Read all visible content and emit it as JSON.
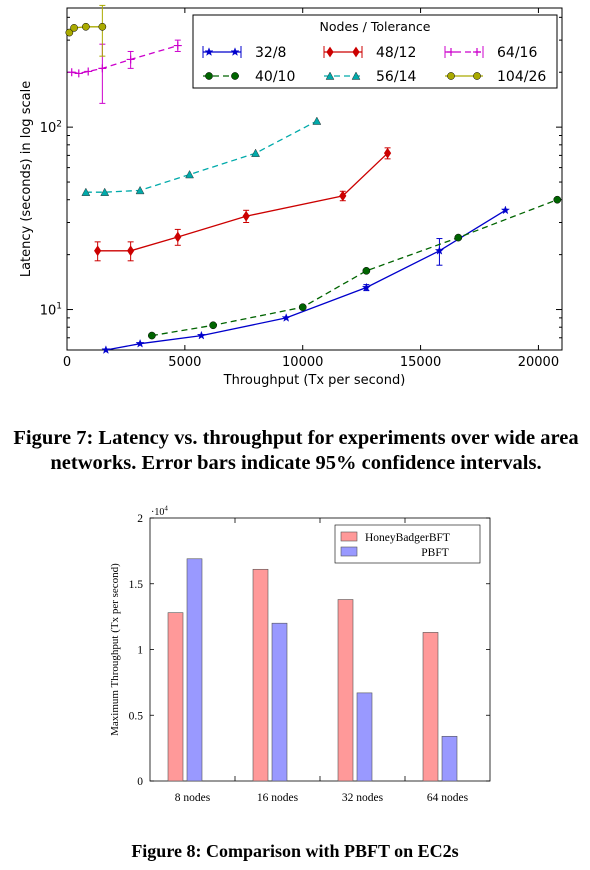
{
  "figure7": {
    "caption": "Figure 7: Latency vs. throughput for experiments over wide area networks. Error bars indicate 95% confidence intervals."
  },
  "figure8": {
    "caption": "Figure 8: Comparison with PBFT on EC2s"
  },
  "chart_data": [
    {
      "id": "fig7",
      "type": "line",
      "title": "",
      "xlabel": "Throughput (Tx per second)",
      "ylabel": "Latency (seconds) in log scale",
      "xlim": [
        0,
        21000
      ],
      "ylim": [
        6,
        450
      ],
      "yscale": "log",
      "xticks": [
        0,
        5000,
        10000,
        15000,
        20000
      ],
      "yticks": [
        {
          "value": 10,
          "label": "10^1"
        },
        {
          "value": 100,
          "label": "10^2"
        }
      ],
      "grid": false,
      "legend": {
        "title": "Nodes / Tolerance",
        "placement": "top-right",
        "columns": 3
      },
      "series": [
        {
          "name": "32/8",
          "color": "#0000cc",
          "dash": "solid",
          "marker": "star",
          "points": [
            [
              1650,
              6.0
            ],
            [
              3100,
              6.5
            ],
            [
              5700,
              7.2
            ],
            [
              9300,
              9.0
            ],
            [
              12700,
              13.2
            ],
            [
              15800,
              21.0
            ],
            [
              18600,
              35.0
            ]
          ],
          "err": [
            0,
            0,
            0,
            0,
            0.5,
            3.5,
            0
          ]
        },
        {
          "name": "40/10",
          "color": "#006400",
          "dash": "dashed",
          "marker": "circle",
          "points": [
            [
              3600,
              7.2
            ],
            [
              6200,
              8.2
            ],
            [
              10000,
              10.3
            ],
            [
              12700,
              16.3
            ],
            [
              16600,
              24.8
            ],
            [
              20800,
              40.0
            ]
          ],
          "err": [
            0,
            0,
            0,
            0,
            0,
            0
          ]
        },
        {
          "name": "48/12",
          "color": "#cc0000",
          "dash": "solid",
          "marker": "diamond",
          "points": [
            [
              1300,
              21.0
            ],
            [
              2700,
              21.0
            ],
            [
              4700,
              25.0
            ],
            [
              7600,
              32.5
            ],
            [
              11700,
              42.0
            ],
            [
              13600,
              72.0
            ]
          ],
          "err": [
            2.5,
            2.5,
            2.5,
            2.5,
            2.5,
            5
          ]
        },
        {
          "name": "56/14",
          "color": "#00aaaa",
          "dash": "dashed",
          "marker": "triangle",
          "points": [
            [
              800,
              44.0
            ],
            [
              1600,
              44.0
            ],
            [
              3100,
              45.0
            ],
            [
              5200,
              55.0
            ],
            [
              8000,
              72.0
            ],
            [
              10600,
              108.0
            ]
          ],
          "err": [
            0,
            0,
            0,
            0,
            0,
            0
          ]
        },
        {
          "name": "64/16",
          "color": "#cc00cc",
          "dash": "dashed",
          "marker": "plus",
          "points": [
            [
              200,
              200
            ],
            [
              500,
              197
            ],
            [
              900,
              202
            ],
            [
              1500,
              210
            ],
            [
              2700,
              235
            ],
            [
              4700,
              280
            ]
          ],
          "err": [
            0,
            0,
            0,
            75,
            25,
            20
          ]
        },
        {
          "name": "104/26",
          "color": "#aaaa00",
          "dash": "solid",
          "marker": "circle",
          "points": [
            [
              100,
              330
            ],
            [
              300,
              350
            ],
            [
              800,
              355
            ],
            [
              1500,
              355
            ]
          ],
          "err": [
            0,
            0,
            0,
            110
          ]
        }
      ]
    },
    {
      "id": "fig8",
      "type": "bar",
      "title": "",
      "xlabel": "",
      "ylabel": "Maximum Throughput (Tx per second)",
      "ylim": [
        0,
        20000
      ],
      "yticks": [
        {
          "value": 0,
          "label": "0"
        },
        {
          "value": 5000,
          "label": "0.5"
        },
        {
          "value": 10000,
          "label": "1"
        },
        {
          "value": 15000,
          "label": "1.5"
        },
        {
          "value": 20000,
          "label": "2"
        }
      ],
      "y_multiplier": "·10^4",
      "categories": [
        "8 nodes",
        "16 nodes",
        "32 nodes",
        "64 nodes"
      ],
      "legend": {
        "placement": "top-right"
      },
      "series": [
        {
          "name": "HoneyBadgerBFT",
          "color": "#ff9999",
          "values": [
            12800,
            16100,
            13800,
            11300
          ]
        },
        {
          "name": "PBFT",
          "color": "#9999ff",
          "values": [
            16900,
            12000,
            6700,
            3400
          ]
        }
      ]
    }
  ]
}
